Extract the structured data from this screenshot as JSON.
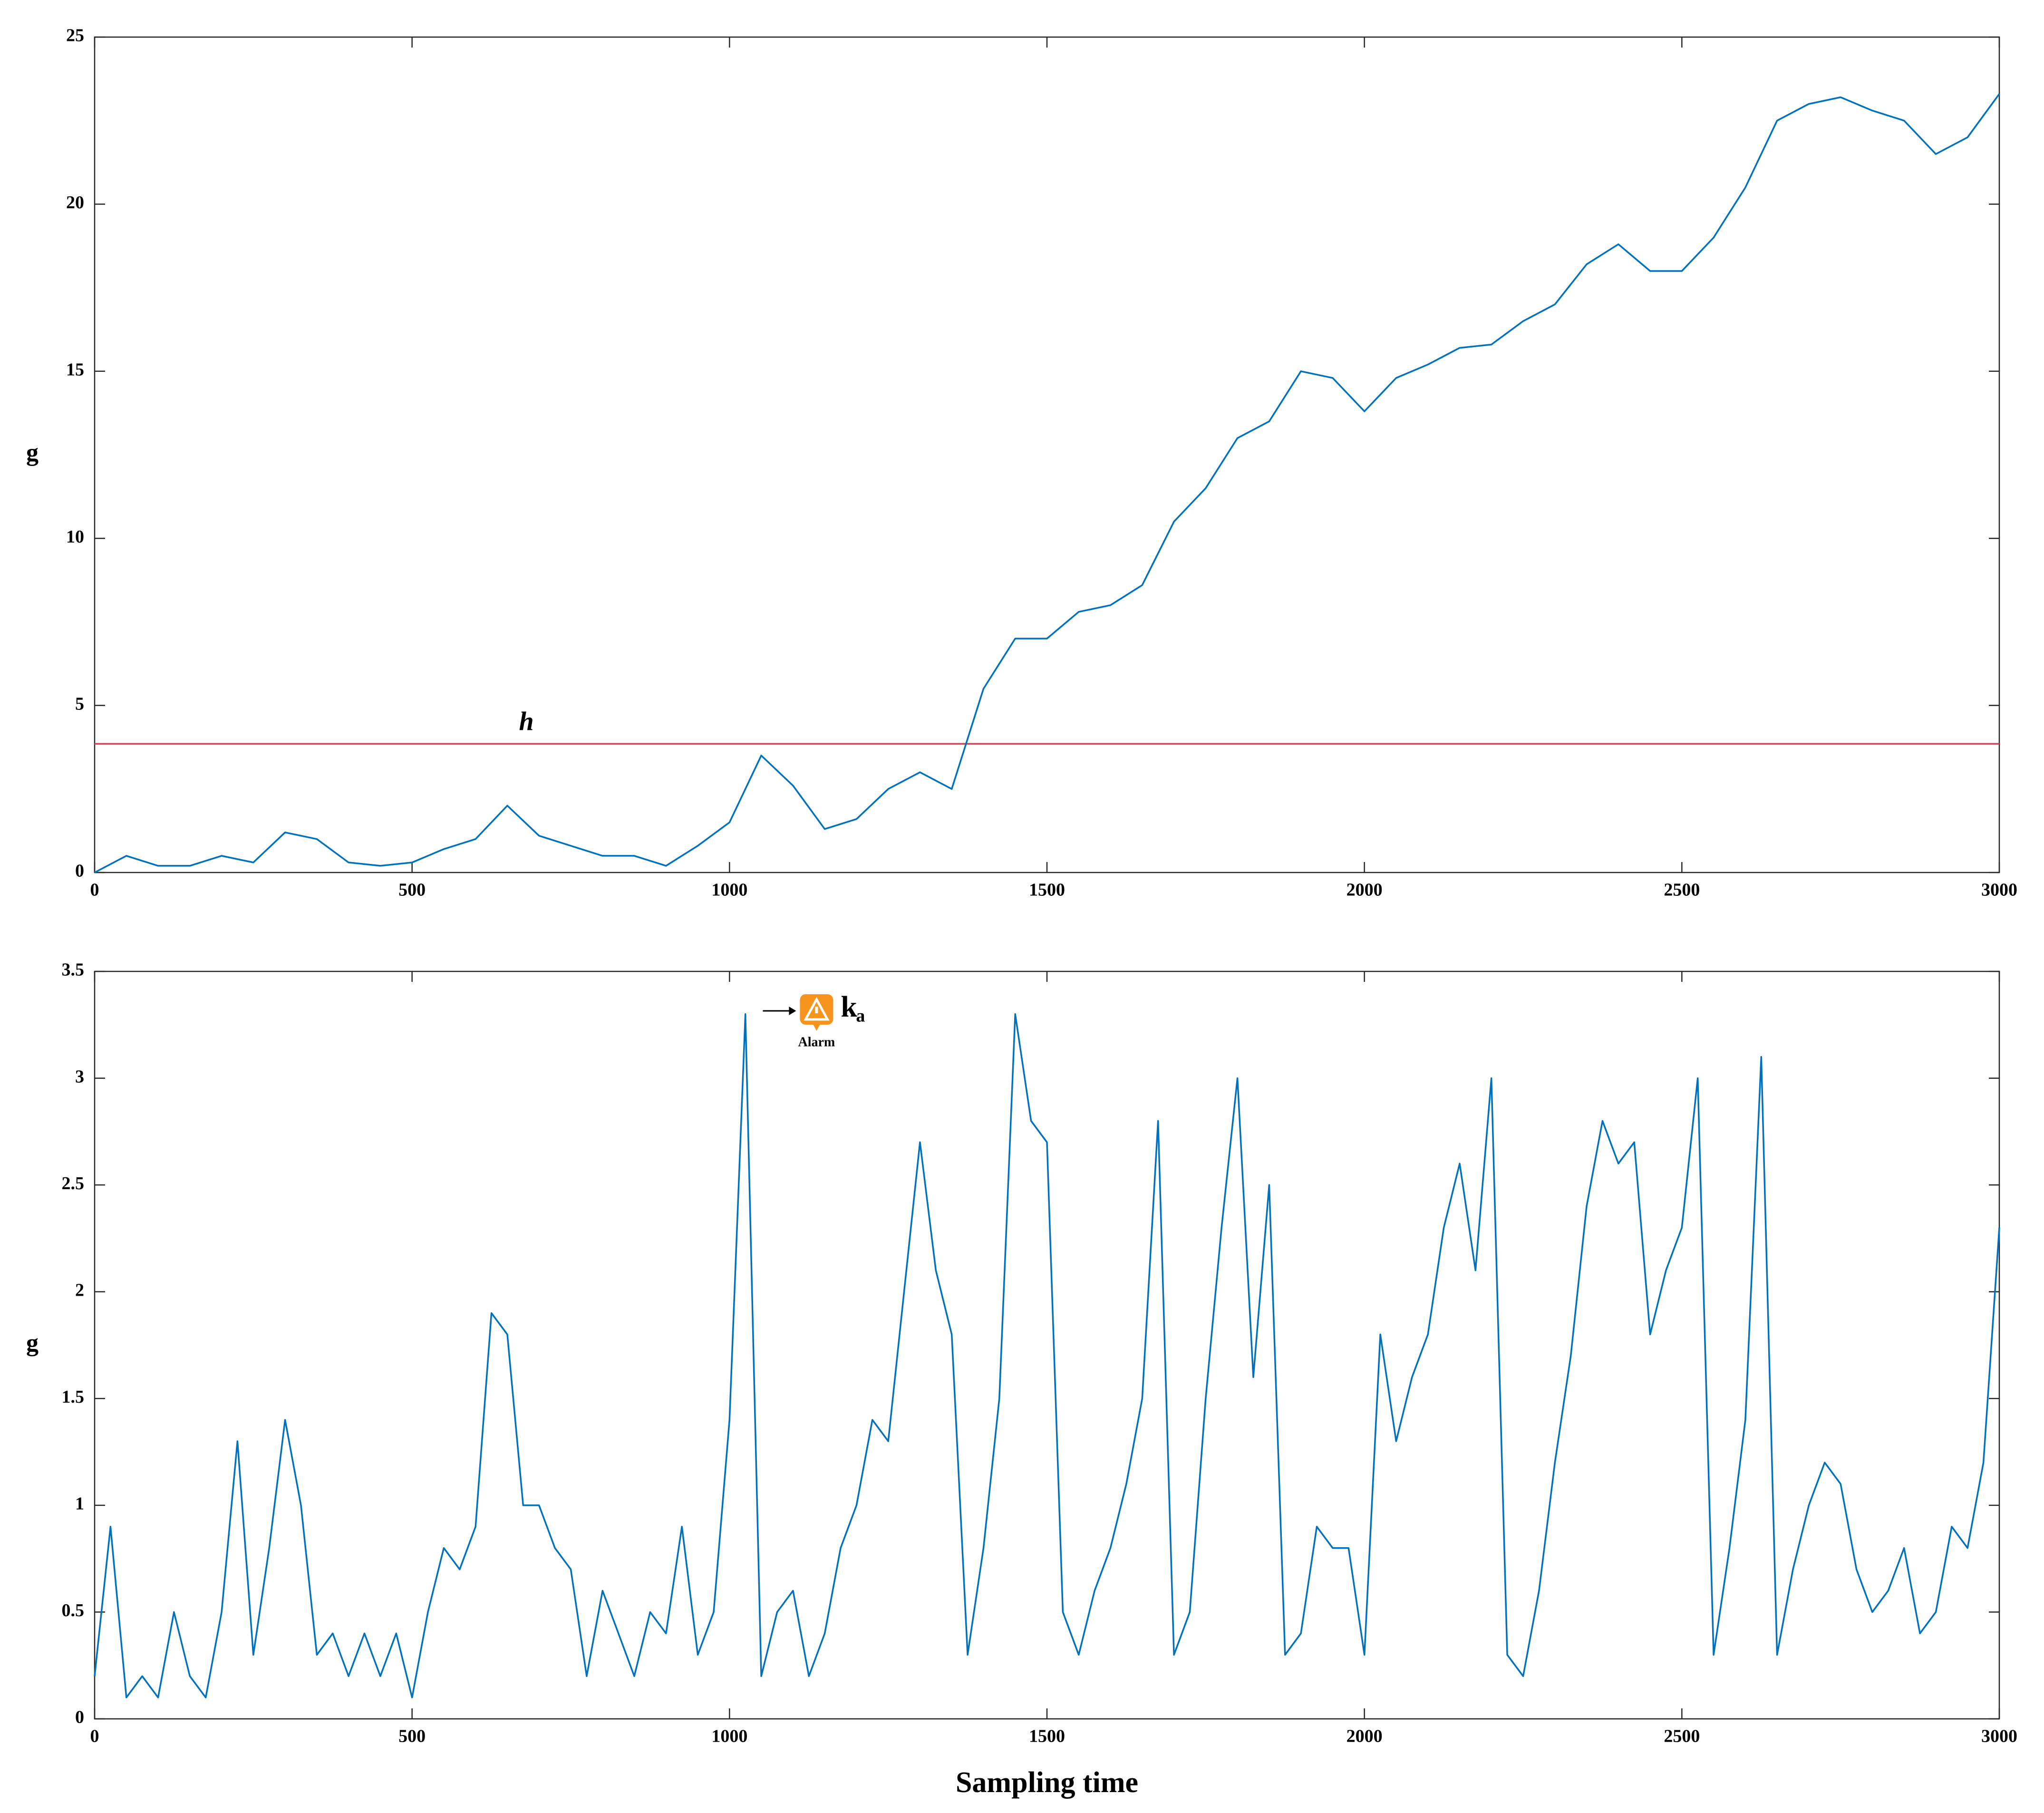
{
  "chart_data": [
    {
      "type": "line",
      "ylabel": "g",
      "x": [
        0,
        50,
        100,
        150,
        200,
        250,
        300,
        350,
        400,
        450,
        500,
        550,
        600,
        650,
        700,
        750,
        800,
        850,
        900,
        950,
        1000,
        1050,
        1100,
        1150,
        1200,
        1250,
        1300,
        1350,
        1400,
        1450,
        1500,
        1550,
        1600,
        1650,
        1700,
        1750,
        1800,
        1850,
        1900,
        1950,
        2000,
        2050,
        2100,
        2150,
        2200,
        2250,
        2300,
        2350,
        2400,
        2450,
        2500,
        2550,
        2600,
        2650,
        2700,
        2750,
        2800,
        2850,
        2900,
        2950,
        3000
      ],
      "series": [
        {
          "color": "#0072bd",
          "values": [
            0,
            0.5,
            0.2,
            0.2,
            0.5,
            0.3,
            1.2,
            1.0,
            0.3,
            0.2,
            0.3,
            0.7,
            1.0,
            2.0,
            1.1,
            0.8,
            0.5,
            0.5,
            0.2,
            0.8,
            1.5,
            3.5,
            2.6,
            1.3,
            1.6,
            2.5,
            3.0,
            2.5,
            5.5,
            7.0,
            7.0,
            7.8,
            8.0,
            8.6,
            10.5,
            11.5,
            13.0,
            13.5,
            15.0,
            14.8,
            13.8,
            14.8,
            15.2,
            15.7,
            15.8,
            16.5,
            17.0,
            18.2,
            18.8,
            18.0,
            18.0,
            19.0,
            20.5,
            22.5,
            23.0,
            23.2,
            22.8,
            22.5,
            21.5,
            22.0,
            23.3
          ]
        }
      ],
      "hline": {
        "value": 3.85,
        "label": "h",
        "color": "#e03c4b"
      },
      "xlim": [
        0,
        3000
      ],
      "xticks": [
        0,
        500,
        1000,
        1500,
        2000,
        2500,
        3000
      ],
      "ylim": [
        0,
        25
      ],
      "yticks": [
        0,
        5,
        10,
        15,
        20,
        25
      ]
    },
    {
      "type": "line",
      "ylabel": "g",
      "xlabel": "Sampling time",
      "x": [
        0,
        25,
        50,
        75,
        100,
        125,
        150,
        175,
        200,
        225,
        250,
        275,
        300,
        325,
        350,
        375,
        400,
        425,
        450,
        475,
        500,
        525,
        550,
        575,
        600,
        625,
        650,
        675,
        700,
        725,
        750,
        775,
        800,
        825,
        850,
        875,
        900,
        925,
        950,
        975,
        1000,
        1025,
        1050,
        1075,
        1100,
        1125,
        1150,
        1175,
        1200,
        1225,
        1250,
        1275,
        1300,
        1325,
        1350,
        1375,
        1400,
        1425,
        1450,
        1475,
        1500,
        1525,
        1550,
        1575,
        1600,
        1625,
        1650,
        1675,
        1700,
        1725,
        1750,
        1775,
        1800,
        1825,
        1850,
        1875,
        1900,
        1925,
        1950,
        1975,
        2000,
        2025,
        2050,
        2075,
        2100,
        2125,
        2150,
        2175,
        2200,
        2225,
        2250,
        2275,
        2300,
        2325,
        2350,
        2375,
        2400,
        2425,
        2450,
        2475,
        2500,
        2525,
        2550,
        2575,
        2600,
        2625,
        2650,
        2675,
        2700,
        2725,
        2750,
        2775,
        2800,
        2825,
        2850,
        2875,
        2900,
        2925,
        2950,
        2975,
        3000
      ],
      "series": [
        {
          "color": "#0072bd",
          "values": [
            0.2,
            0.9,
            0.1,
            0.2,
            0.1,
            0.5,
            0.2,
            0.1,
            0.5,
            1.3,
            0.3,
            0.8,
            1.4,
            1.0,
            0.3,
            0.4,
            0.2,
            0.4,
            0.2,
            0.4,
            0.1,
            0.5,
            0.8,
            0.7,
            0.9,
            1.9,
            1.8,
            1.0,
            1.0,
            0.8,
            0.7,
            0.2,
            0.6,
            0.4,
            0.2,
            0.5,
            0.4,
            0.9,
            0.3,
            0.5,
            1.4,
            3.3,
            0.2,
            0.5,
            0.6,
            0.2,
            0.4,
            0.8,
            1.0,
            1.4,
            1.3,
            2.0,
            2.7,
            2.1,
            1.8,
            0.3,
            0.8,
            1.5,
            3.3,
            2.8,
            2.7,
            0.5,
            0.3,
            0.6,
            0.8,
            1.1,
            1.5,
            2.8,
            0.3,
            0.5,
            1.5,
            2.3,
            3.0,
            1.6,
            2.5,
            0.3,
            0.4,
            0.9,
            0.8,
            0.8,
            0.3,
            1.8,
            1.3,
            1.6,
            1.8,
            2.3,
            2.6,
            2.1,
            3.0,
            0.3,
            0.2,
            0.6,
            1.2,
            1.7,
            2.4,
            2.8,
            2.6,
            2.7,
            1.8,
            2.1,
            2.3,
            3.0,
            0.3,
            0.8,
            1.4,
            3.1,
            0.3,
            0.7,
            1.0,
            1.2,
            1.1,
            0.7,
            0.5,
            0.6,
            0.8,
            0.4,
            0.5,
            0.9,
            0.8,
            1.2,
            2.3
          ]
        }
      ],
      "annotation": {
        "symbol": "k",
        "subscript": "a",
        "text": "Alarm"
      },
      "xlim": [
        0,
        3000
      ],
      "xticks": [
        0,
        500,
        1000,
        1500,
        2000,
        2500,
        3000
      ],
      "ylim": [
        0,
        3.5
      ],
      "yticks": [
        0,
        0.5,
        1,
        1.5,
        2,
        2.5,
        3,
        3.5
      ]
    }
  ]
}
